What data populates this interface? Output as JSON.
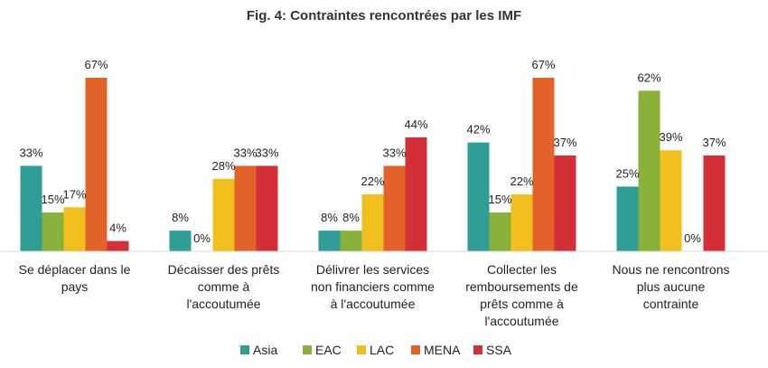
{
  "chart_data": {
    "type": "bar",
    "title": "Fig. 4: Contraintes rencontrées par les IMF",
    "categories": [
      [
        "Se déplacer dans le",
        "pays"
      ],
      [
        "Décaisser des prêts",
        "comme à",
        "l'accoutumée"
      ],
      [
        "Délivrer les services",
        "non financiers comme",
        "à l'accoutumée"
      ],
      [
        "Collecter les",
        "remboursements de",
        "prêts comme à",
        "l'accoutumée"
      ],
      [
        "Nous ne rencontrons",
        "plus aucune",
        "contrainte"
      ]
    ],
    "series": [
      {
        "name": "Asia",
        "color": "#2e9e96",
        "values": [
          33,
          8,
          8,
          42,
          25
        ]
      },
      {
        "name": "EAC",
        "color": "#8ab23a",
        "values": [
          15,
          0,
          8,
          15,
          62
        ]
      },
      {
        "name": "LAC",
        "color": "#f1c01e",
        "values": [
          17,
          28,
          22,
          22,
          39
        ]
      },
      {
        "name": "MENA",
        "color": "#e2622a",
        "values": [
          67,
          33,
          33,
          67,
          0
        ]
      },
      {
        "name": "SSA",
        "color": "#d32f36",
        "values": [
          4,
          33,
          44,
          37,
          37
        ]
      }
    ],
    "ylim": [
      0,
      70
    ],
    "value_suffix": "%",
    "grid": false,
    "legend_position": "bottom"
  }
}
